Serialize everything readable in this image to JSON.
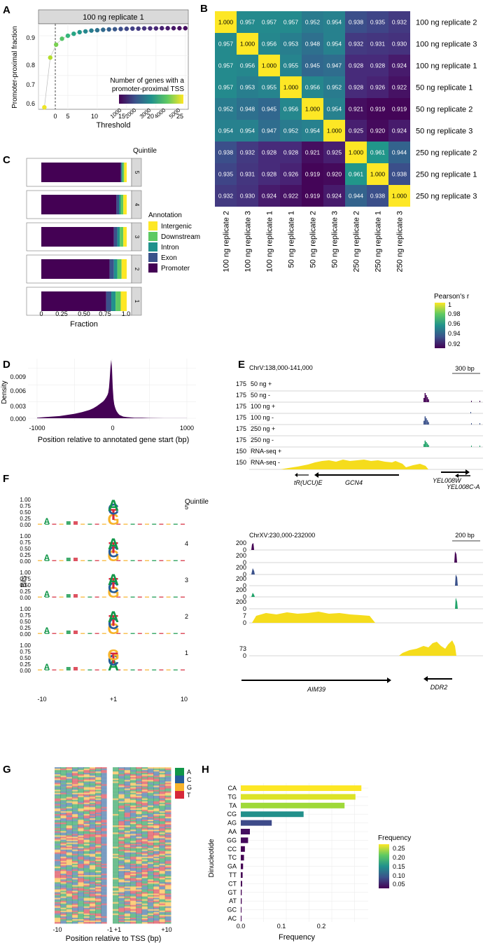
{
  "panel_labels": {
    "a": "A",
    "b": "B",
    "c": "C",
    "d": "D",
    "e": "E",
    "f": "F",
    "g": "G",
    "h": "H"
  },
  "colors": {
    "viridis": [
      "#440154",
      "#482878",
      "#3e4989",
      "#31688e",
      "#26828e",
      "#1f9e89",
      "#35b779",
      "#6ece58",
      "#b5de2b",
      "#fde725"
    ],
    "purple": "#440154",
    "blue": "#3b528b",
    "green": "#21a36a",
    "yellow": "#f5dc1c",
    "strip_bg": "#d9d9d9",
    "grid": "#ececec",
    "panel_border": "#7a7a7a",
    "base_A": "#109648",
    "base_C": "#255c99",
    "base_G": "#f7b32b",
    "base_T": "#d62839"
  },
  "panelA": {
    "strip": "100 ng replicate 1",
    "ylabel": "Promoter-proximal fraction",
    "xlabel": "Threshold",
    "xticks": [
      "0",
      "5",
      "10",
      "15",
      "20",
      "25"
    ],
    "yticks": [
      "0.6",
      "0.7",
      "0.8",
      "0.9"
    ],
    "legend_title_1": "Number of genes with a",
    "legend_title_2": "promoter-proximal TSS",
    "legend_ticks": [
      "1000",
      "2000",
      "3000",
      "4000",
      "5000"
    ]
  },
  "panelB": {
    "samples": [
      "100 ng replicate 2",
      "100 ng replicate 3",
      "100 ng replicate 1",
      "50 ng replicate 1",
      "50 ng replicate 2",
      "50 ng replicate 3",
      "250 ng replicate 2",
      "250 ng replicate 1",
      "250 ng replicate 3"
    ],
    "legend_title": "Pearson's r",
    "legend_ticks": [
      "1",
      "0.98",
      "0.96",
      "0.94",
      "0.92"
    ]
  },
  "panelC": {
    "strip_title": "Quintile",
    "quintile_labels": [
      "5",
      "4",
      "3",
      "2",
      "1"
    ],
    "xlabel": "Fraction",
    "xticks": [
      "0",
      "0.25",
      "0.50",
      "0.75",
      "1.0"
    ],
    "legend_title": "Annotation",
    "legend_items": [
      "Intergenic",
      "Downstream",
      "Intron",
      "Exon",
      "Promoter"
    ]
  },
  "panelD": {
    "ylabel": "Density",
    "xlabel": "Position relative to annotated gene start (bp)",
    "xticks": [
      "-1000",
      "0",
      "1000"
    ],
    "yticks": [
      "0.009",
      "0.006",
      "0.003",
      "0.000"
    ]
  },
  "panelE": {
    "region": "ChrV:138,000-141,000",
    "scale": "300 bp",
    "tracks": [
      {
        "max": "175",
        "label": "50 ng +"
      },
      {
        "max": "175",
        "label": "50 ng -"
      },
      {
        "max": "175",
        "label": "100 ng +"
      },
      {
        "max": "175",
        "label": "100 ng -"
      },
      {
        "max": "175",
        "label": "250 ng +"
      },
      {
        "max": "175",
        "label": "250 ng -"
      },
      {
        "max": "150",
        "label": "RNA-seq +"
      },
      {
        "max": "150",
        "label": "RNA-seq -"
      }
    ],
    "genes": [
      "tR(UCU)E",
      "GCN4",
      "YEL008W",
      "YEL008C-A"
    ]
  },
  "panelE2": {
    "region": "ChrXV:230,000-232000",
    "scale": "200 bp",
    "track_max": [
      "200",
      "200",
      "200",
      "200",
      "200",
      "200",
      "7",
      "73"
    ],
    "zero": "0",
    "genes": [
      "AIM39",
      "DDR2"
    ]
  },
  "panelF": {
    "ylabel": "Bits",
    "title": "Quintile",
    "quintiles": [
      "5",
      "4",
      "3",
      "2",
      "1"
    ],
    "yticks": [
      "1.00",
      "0.75",
      "0.50",
      "0.25",
      "0.00"
    ],
    "xticks": [
      "-10",
      "+1",
      "10"
    ]
  },
  "panelG": {
    "legend": [
      "A",
      "C",
      "G",
      "T"
    ],
    "xticks": [
      "-10",
      "-1",
      "+1",
      "+10"
    ],
    "xlabel": "Position relative to TSS (bp)"
  },
  "panelH": {
    "ylabel": "Dinucleotide",
    "xlabel": "Frequency",
    "xticks": [
      "0.0",
      "0.1",
      "0.2"
    ],
    "legend_title": "Frequency",
    "legend_ticks": [
      "0.25",
      "0.20",
      "0.15",
      "0.10",
      "0.05"
    ]
  },
  "chart_data": [
    {
      "type": "scatter",
      "id": "A",
      "title": "100 ng replicate 1",
      "xlabel": "Threshold",
      "ylabel": "Promoter-proximal fraction",
      "xlim": [
        0,
        25.5
      ],
      "ylim": [
        0.53,
        0.96
      ],
      "x": [
        1,
        2,
        3,
        4,
        5,
        6,
        7,
        8,
        9,
        10,
        11,
        12,
        13,
        14,
        15,
        16,
        17,
        18,
        19,
        20,
        21,
        22,
        23,
        24,
        25
      ],
      "y": [
        0.54,
        0.79,
        0.855,
        0.885,
        0.9,
        0.91,
        0.918,
        0.922,
        0.926,
        0.928,
        0.93,
        0.932,
        0.933,
        0.934,
        0.935,
        0.936,
        0.936,
        0.937,
        0.937,
        0.937,
        0.938,
        0.938,
        0.938,
        0.938,
        0.938
      ],
      "color_values": [
        5300,
        4900,
        4500,
        4200,
        3900,
        3600,
        3300,
        3050,
        2850,
        2650,
        2500,
        2350,
        2200,
        2050,
        1950,
        1850,
        1750,
        1650,
        1550,
        1480,
        1400,
        1330,
        1260,
        1200,
        1150
      ]
    },
    {
      "type": "heatmap",
      "id": "B",
      "rows": [
        "100 ng replicate 2",
        "100 ng replicate 3",
        "100 ng replicate 1",
        "50 ng replicate 1",
        "50 ng replicate 2",
        "50 ng replicate 3",
        "250 ng replicate 2",
        "250 ng replicate 1",
        "250 ng replicate 3"
      ],
      "columns": [
        "100 ng replicate 2",
        "100 ng replicate 3",
        "100 ng replicate 1",
        "50 ng replicate 1",
        "50 ng replicate 2",
        "50 ng replicate 3",
        "250 ng replicate 2",
        "250 ng replicate 1",
        "250 ng replicate 3"
      ],
      "values": [
        [
          "1.000",
          "0.957",
          "0.957",
          "0.957",
          "0.952",
          "0.954",
          "0.938",
          "0.935",
          "0.932"
        ],
        [
          "0.957",
          "1.000",
          "0.956",
          "0.953",
          "0.948",
          "0.954",
          "0.932",
          "0.931",
          "0.930"
        ],
        [
          "0.957",
          "0.956",
          "1.000",
          "0.955",
          "0.945",
          "0.947",
          "0.928",
          "0.928",
          "0.924"
        ],
        [
          "0.957",
          "0.953",
          "0.955",
          "1.000",
          "0.956",
          "0.952",
          "0.928",
          "0.926",
          "0.922"
        ],
        [
          "0.952",
          "0.948",
          "0.945",
          "0.956",
          "1.000",
          "0.954",
          "0.921",
          "0.919",
          "0.919"
        ],
        [
          "0.954",
          "0.954",
          "0.947",
          "0.952",
          "0.954",
          "1.000",
          "0.925",
          "0.920",
          "0.924"
        ],
        [
          "0.938",
          "0.932",
          "0.928",
          "0.928",
          "0.921",
          "0.925",
          "1.000",
          "0.961",
          "0.944"
        ],
        [
          "0.935",
          "0.931",
          "0.928",
          "0.926",
          "0.919",
          "0.920",
          "0.961",
          "1.000",
          "0.938"
        ],
        [
          "0.932",
          "0.930",
          "0.924",
          "0.922",
          "0.919",
          "0.924",
          "0.944",
          "0.938",
          "1.000"
        ]
      ],
      "legend_title": "Pearson's r",
      "color_range": [
        0.918,
        1.0
      ]
    },
    {
      "type": "bar",
      "id": "C",
      "orientation": "horizontal-stacked",
      "xlabel": "Fraction",
      "categories": [
        "5",
        "4",
        "3",
        "2",
        "1"
      ],
      "series": [
        {
          "name": "Promoter",
          "values": [
            0.93,
            0.88,
            0.85,
            0.8,
            0.76
          ]
        },
        {
          "name": "Exon",
          "values": [
            0.01,
            0.03,
            0.04,
            0.05,
            0.06
          ]
        },
        {
          "name": "Intron",
          "values": [
            0.01,
            0.02,
            0.03,
            0.04,
            0.05
          ]
        },
        {
          "name": "Downstream",
          "values": [
            0.02,
            0.03,
            0.04,
            0.05,
            0.06
          ]
        },
        {
          "name": "Intergenic",
          "values": [
            0.03,
            0.04,
            0.04,
            0.06,
            0.07
          ]
        }
      ]
    },
    {
      "type": "area",
      "id": "D",
      "xlabel": "Position relative to annotated gene start (bp)",
      "ylabel": "Density",
      "xlim": [
        -1000,
        1000
      ],
      "ylim": [
        0,
        0.0107
      ],
      "x": [
        -1000,
        -900,
        -800,
        -700,
        -600,
        -500,
        -400,
        -300,
        -250,
        -200,
        -150,
        -120,
        -100,
        -80,
        -60,
        -50,
        -40,
        -30,
        -20,
        -10,
        0,
        10,
        20,
        30,
        40,
        50,
        60,
        80,
        100,
        150,
        200,
        300,
        400,
        500,
        600,
        700,
        800,
        900,
        1000
      ],
      "y": [
        0.0001,
        0.0002,
        0.0003,
        0.0004,
        0.0006,
        0.0008,
        0.0011,
        0.0015,
        0.0018,
        0.0022,
        0.0027,
        0.003,
        0.0033,
        0.0037,
        0.0042,
        0.0046,
        0.0055,
        0.0072,
        0.0093,
        0.0105,
        0.0088,
        0.0055,
        0.0035,
        0.0025,
        0.002,
        0.0016,
        0.0013,
        0.0009,
        0.0006,
        0.0003,
        0.0002,
        0.0001,
        0.0001,
        5e-05,
        3e-05,
        2e-05,
        1e-05,
        1e-05,
        1e-05
      ]
    },
    {
      "type": "bar",
      "id": "H",
      "orientation": "horizontal",
      "xlabel": "Frequency",
      "ylabel": "Dinucleotide",
      "categories": [
        "CA",
        "TG",
        "TA",
        "CG",
        "AG",
        "AA",
        "GG",
        "CC",
        "TC",
        "GA",
        "TT",
        "CT",
        "GT",
        "AT",
        "GC",
        "AC"
      ],
      "values": [
        0.265,
        0.252,
        0.228,
        0.138,
        0.068,
        0.02,
        0.016,
        0.009,
        0.007,
        0.005,
        0.004,
        0.003,
        0.002,
        0.002,
        0.001,
        0.001
      ],
      "xlim": [
        0,
        0.28
      ],
      "legend_title": "Frequency"
    }
  ]
}
